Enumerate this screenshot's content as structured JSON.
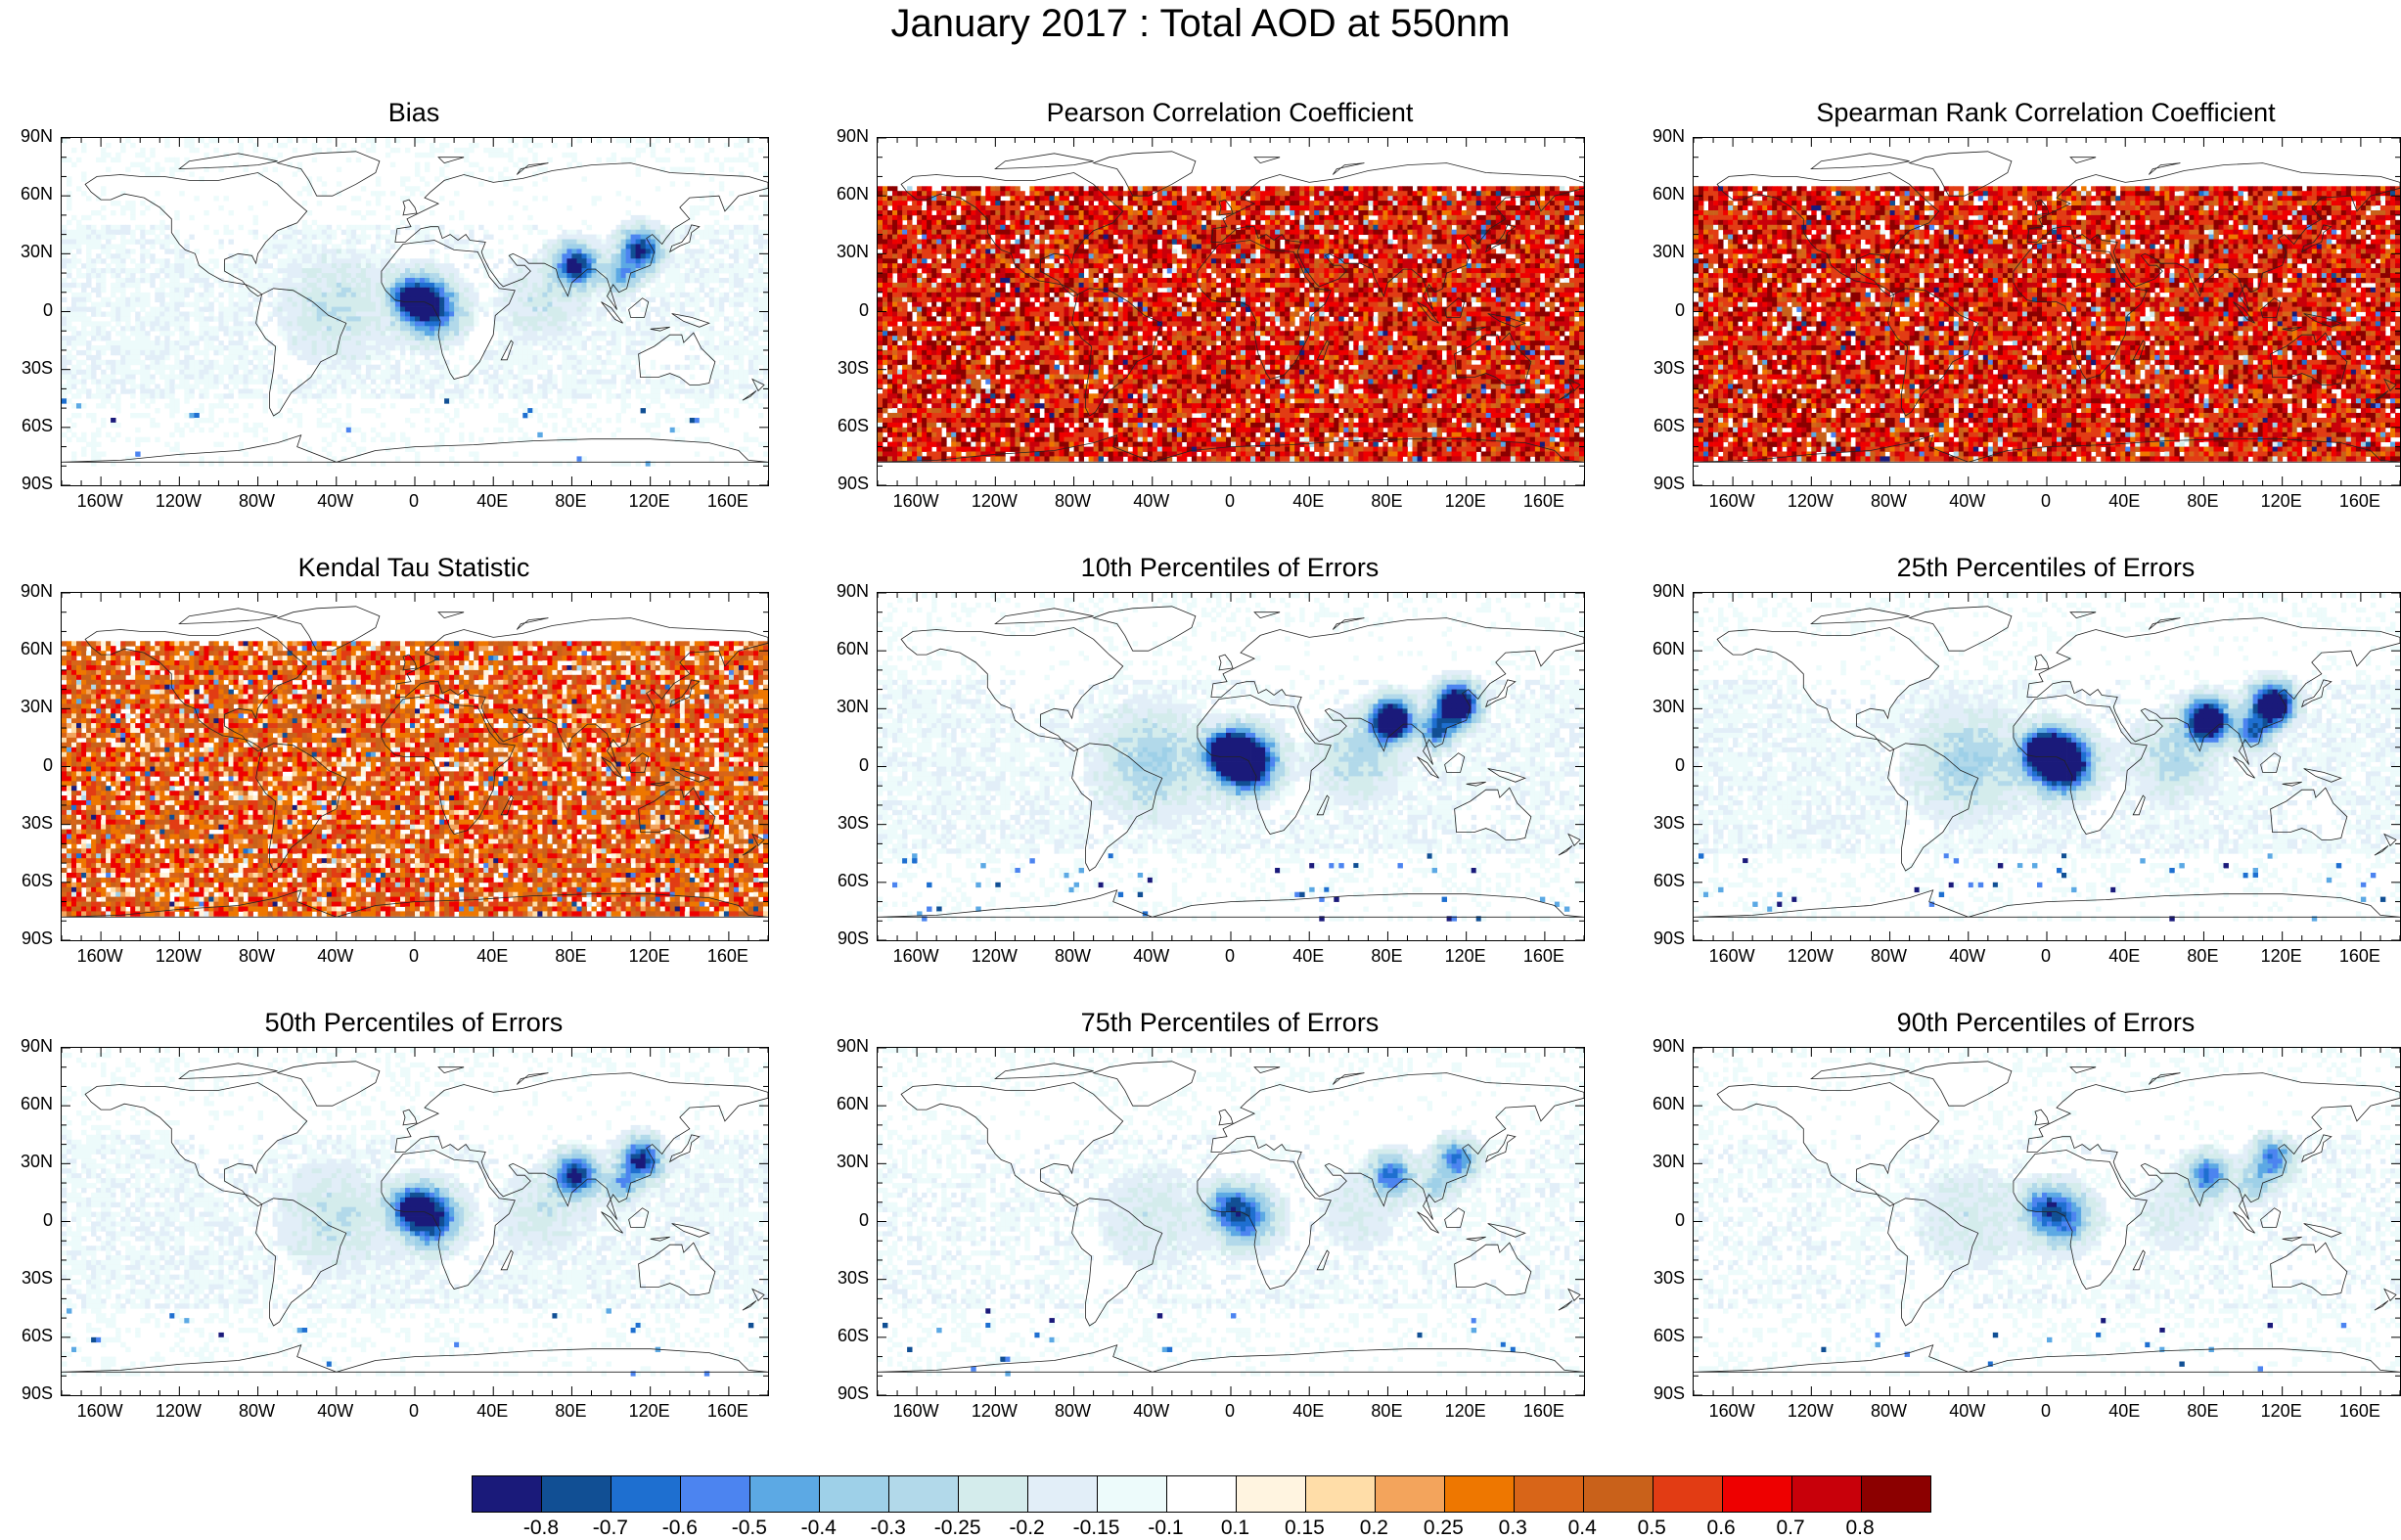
{
  "title": "January 2017 : Total AOD at 550nm",
  "lat_labels": [
    "90N",
    "60N",
    "30N",
    "0",
    "30S",
    "60S",
    "90S"
  ],
  "lon_labels": [
    "160W",
    "120W",
    "80W",
    "40W",
    "0",
    "40E",
    "80E",
    "120E",
    "160E"
  ],
  "panels": [
    {
      "title": "Bias",
      "style": "blue"
    },
    {
      "title": "Pearson Correlation Coefficient",
      "style": "red"
    },
    {
      "title": "Spearman Rank Correlation Coefficient",
      "style": "red"
    },
    {
      "title": "Kendal Tau Statistic",
      "style": "orange"
    },
    {
      "title": "10th Percentiles of Errors",
      "style": "blue-strong"
    },
    {
      "title": "25th Percentiles of Errors",
      "style": "blue-strong"
    },
    {
      "title": "50th Percentiles of Errors",
      "style": "blue"
    },
    {
      "title": "75th Percentiles of Errors",
      "style": "blue-light"
    },
    {
      "title": "90th Percentiles of Errors",
      "style": "blue-light"
    }
  ],
  "colorbar": {
    "labels": [
      "-0.8",
      "-0.7",
      "-0.6",
      "-0.5",
      "-0.4",
      "-0.3",
      "-0.25",
      "-0.2",
      "-0.15",
      "-0.1",
      "0.1",
      "0.15",
      "0.2",
      "0.25",
      "0.3",
      "0.4",
      "0.5",
      "0.6",
      "0.7",
      "0.8"
    ],
    "colors": [
      "#1a1a7a",
      "#114f94",
      "#1e6fd0",
      "#4c84f0",
      "#5ca9e4",
      "#9ed0e8",
      "#b2d9ea",
      "#d4ecec",
      "#e2eef8",
      "#edfbfb",
      "#ffffff",
      "#fff4e0",
      "#ffdda8",
      "#f3a45c",
      "#ee7700",
      "#d86518",
      "#c9611a",
      "#e23c14",
      "#ee0000",
      "#c8000a",
      "#8c0000"
    ]
  }
}
